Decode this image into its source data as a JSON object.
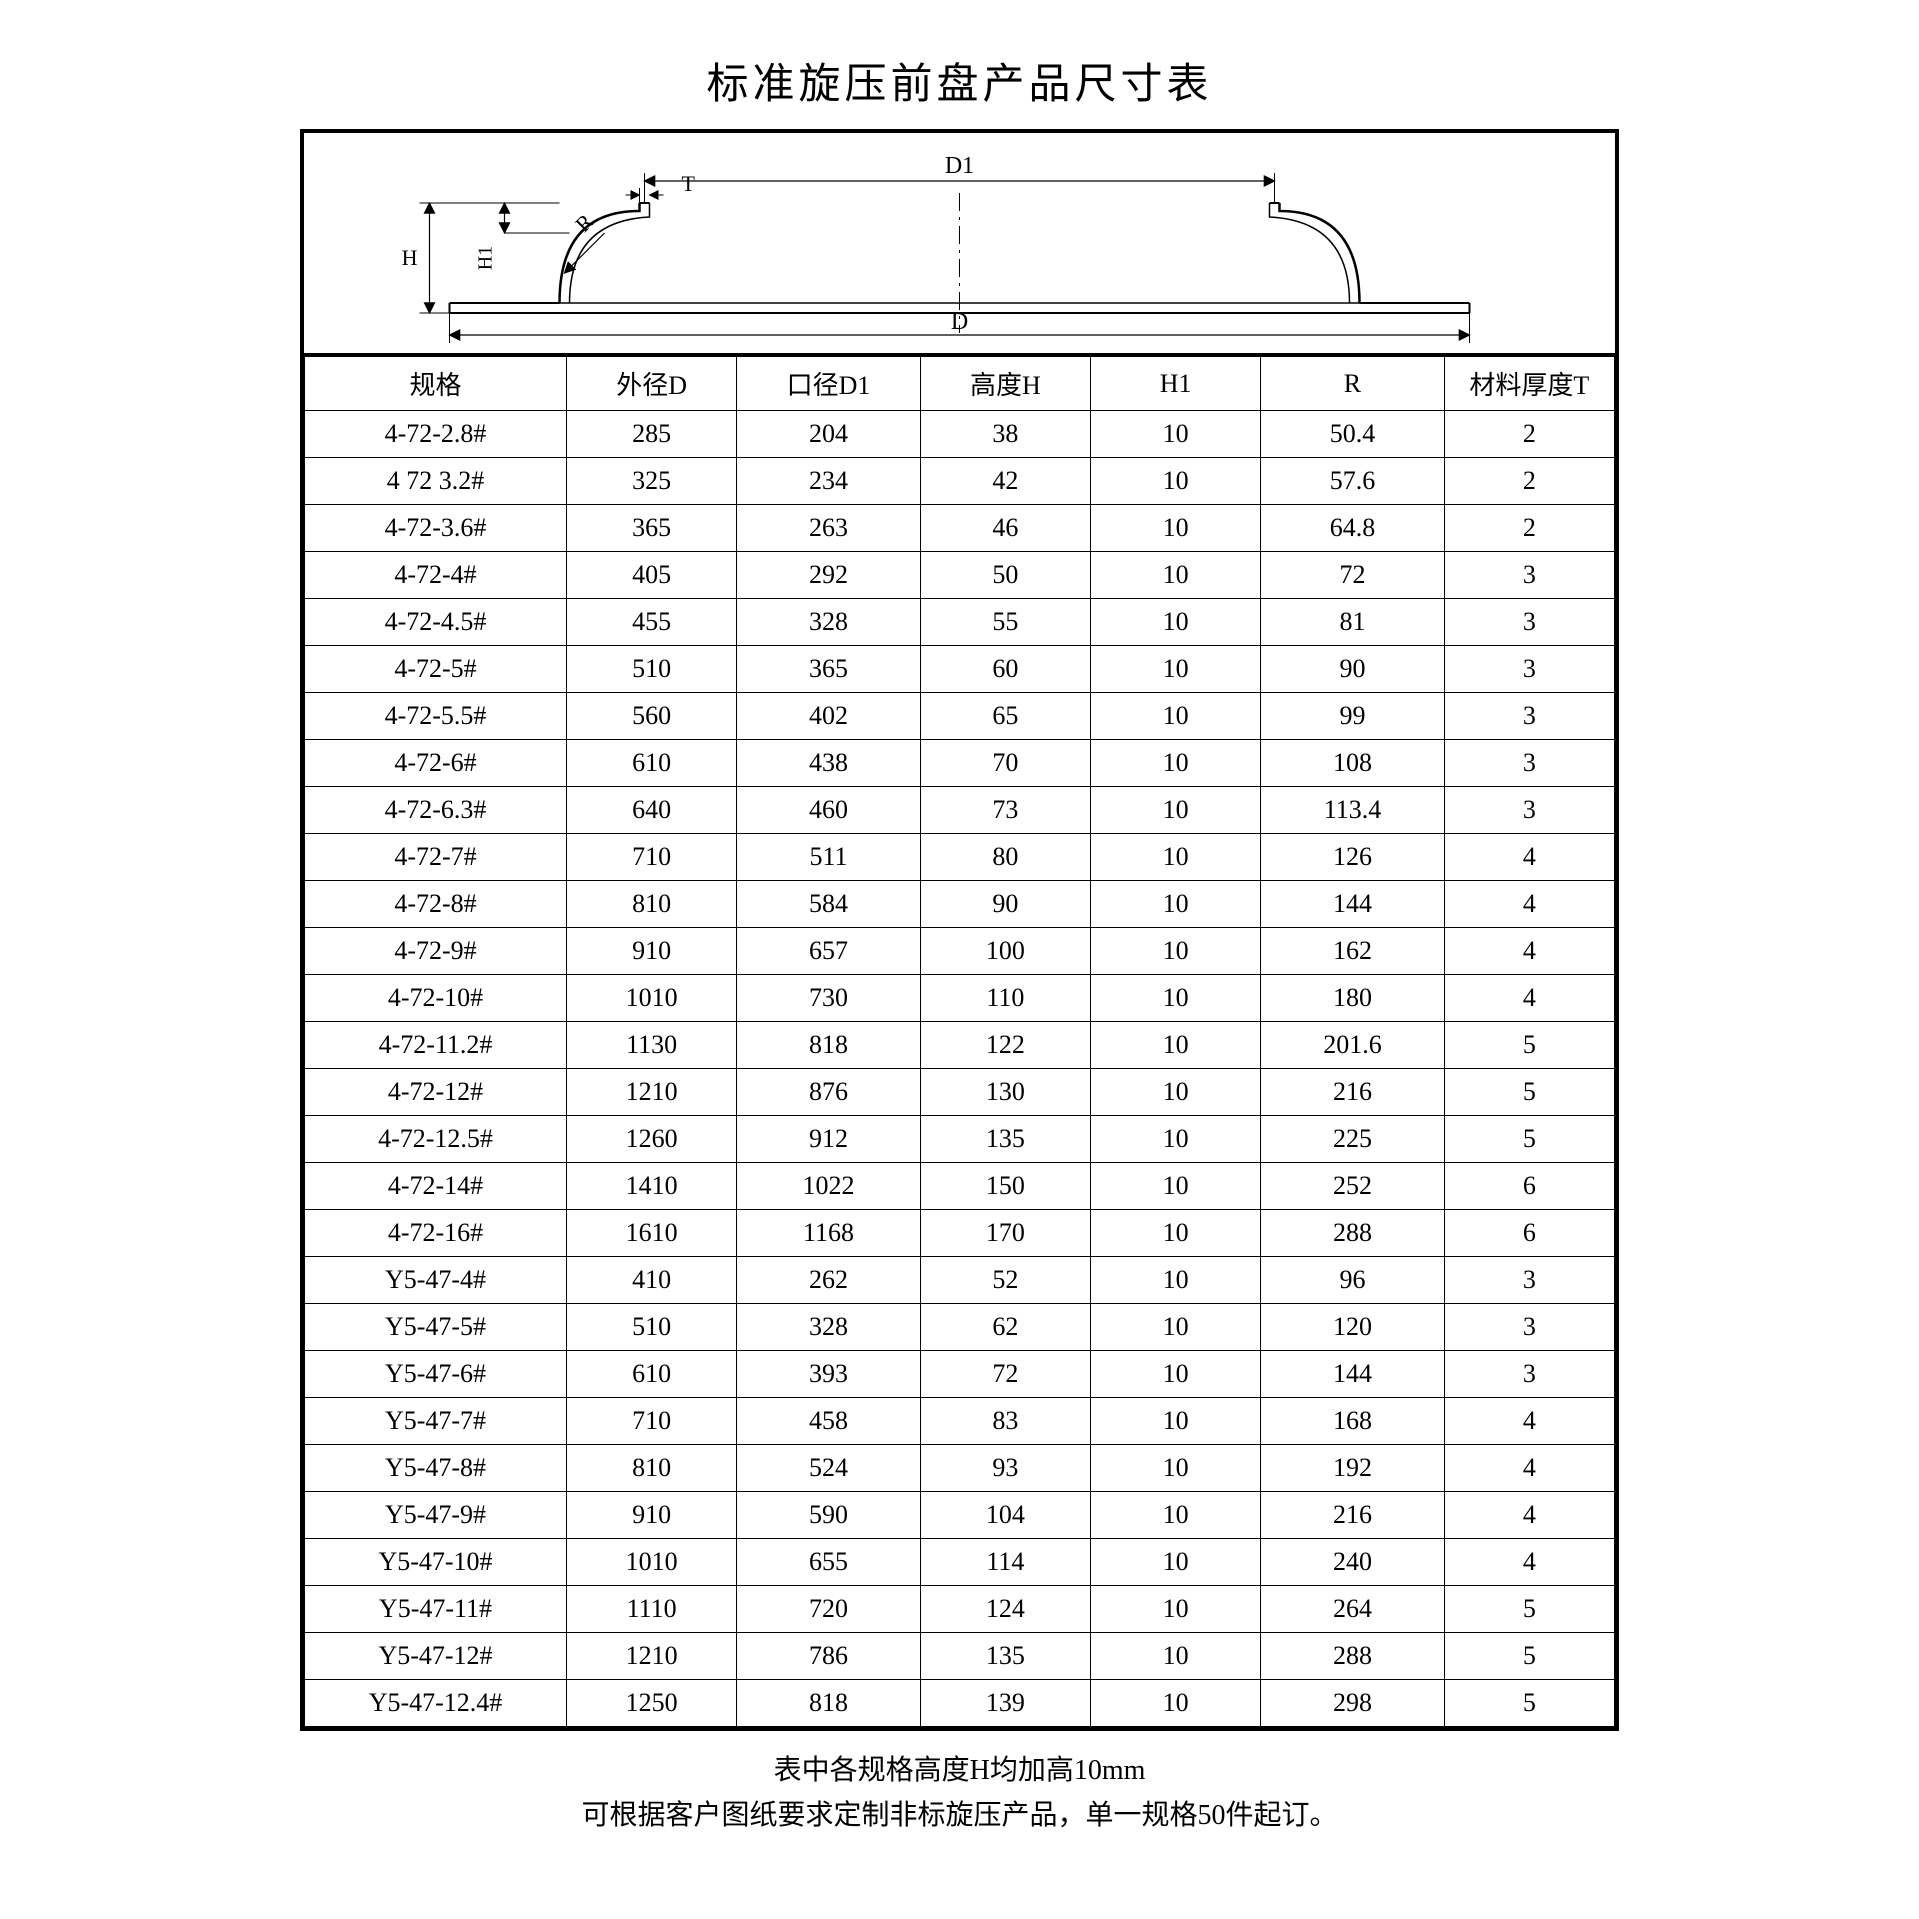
{
  "title": "标准旋压前盘产品尺寸表",
  "diagram": {
    "labels": {
      "D": "D",
      "D1": "D1",
      "T": "T",
      "H": "H",
      "H1": "H1",
      "R": "R"
    },
    "stroke": "#000000",
    "fill": "#ffffff",
    "font_size": 22
  },
  "table": {
    "columns": [
      "规格",
      "外径D",
      "口径D1",
      "高度H",
      "H1",
      "R",
      "材料厚度T"
    ],
    "col_widths_pct": [
      20,
      13,
      14,
      13,
      13,
      14,
      13
    ],
    "rows": [
      [
        "4-72-2.8#",
        "285",
        "204",
        "38",
        "10",
        "50.4",
        "2"
      ],
      [
        "4 72 3.2#",
        "325",
        "234",
        "42",
        "10",
        "57.6",
        "2"
      ],
      [
        "4-72-3.6#",
        "365",
        "263",
        "46",
        "10",
        "64.8",
        "2"
      ],
      [
        "4-72-4#",
        "405",
        "292",
        "50",
        "10",
        "72",
        "3"
      ],
      [
        "4-72-4.5#",
        "455",
        "328",
        "55",
        "10",
        "81",
        "3"
      ],
      [
        "4-72-5#",
        "510",
        "365",
        "60",
        "10",
        "90",
        "3"
      ],
      [
        "4-72-5.5#",
        "560",
        "402",
        "65",
        "10",
        "99",
        "3"
      ],
      [
        "4-72-6#",
        "610",
        "438",
        "70",
        "10",
        "108",
        "3"
      ],
      [
        "4-72-6.3#",
        "640",
        "460",
        "73",
        "10",
        "113.4",
        "3"
      ],
      [
        "4-72-7#",
        "710",
        "511",
        "80",
        "10",
        "126",
        "4"
      ],
      [
        "4-72-8#",
        "810",
        "584",
        "90",
        "10",
        "144",
        "4"
      ],
      [
        "4-72-9#",
        "910",
        "657",
        "100",
        "10",
        "162",
        "4"
      ],
      [
        "4-72-10#",
        "1010",
        "730",
        "110",
        "10",
        "180",
        "4"
      ],
      [
        "4-72-11.2#",
        "1130",
        "818",
        "122",
        "10",
        "201.6",
        "5"
      ],
      [
        "4-72-12#",
        "1210",
        "876",
        "130",
        "10",
        "216",
        "5"
      ],
      [
        "4-72-12.5#",
        "1260",
        "912",
        "135",
        "10",
        "225",
        "5"
      ],
      [
        "4-72-14#",
        "1410",
        "1022",
        "150",
        "10",
        "252",
        "6"
      ],
      [
        "4-72-16#",
        "1610",
        "1168",
        "170",
        "10",
        "288",
        "6"
      ],
      [
        "Y5-47-4#",
        "410",
        "262",
        "52",
        "10",
        "96",
        "3"
      ],
      [
        "Y5-47-5#",
        "510",
        "328",
        "62",
        "10",
        "120",
        "3"
      ],
      [
        "Y5-47-6#",
        "610",
        "393",
        "72",
        "10",
        "144",
        "3"
      ],
      [
        "Y5-47-7#",
        "710",
        "458",
        "83",
        "10",
        "168",
        "4"
      ],
      [
        "Y5-47-8#",
        "810",
        "524",
        "93",
        "10",
        "192",
        "4"
      ],
      [
        "Y5-47-9#",
        "910",
        "590",
        "104",
        "10",
        "216",
        "4"
      ],
      [
        "Y5-47-10#",
        "1010",
        "655",
        "114",
        "10",
        "240",
        "4"
      ],
      [
        "Y5-47-11#",
        "1110",
        "720",
        "124",
        "10",
        "264",
        "5"
      ],
      [
        "Y5-47-12#",
        "1210",
        "786",
        "135",
        "10",
        "288",
        "5"
      ],
      [
        "Y5-47-12.4#",
        "1250",
        "818",
        "139",
        "10",
        "298",
        "5"
      ]
    ],
    "border_color": "#000000",
    "cell_font_size": 26
  },
  "footnotes": [
    "表中各规格高度H均加高10mm",
    "可根据客户图纸要求定制非标旋压产品，单一规格50件起订。"
  ]
}
